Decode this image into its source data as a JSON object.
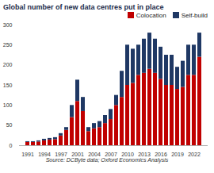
{
  "chart_data": {
    "type": "bar",
    "title": "Global number of new data centres put in place",
    "caption": "Source: DCByte data; Oxford Economics Analysis",
    "stacked": true,
    "legend": "top-right",
    "grid": false,
    "categories": [
      "1991",
      null,
      null,
      "1994",
      null,
      null,
      "1997",
      null,
      null,
      "2001",
      null,
      null,
      "2004",
      null,
      null,
      "2007",
      null,
      null,
      "2010",
      null,
      null,
      "2013",
      null,
      null,
      "2016",
      null,
      null,
      "2019",
      null,
      null,
      "2022",
      null
    ],
    "series": [
      {
        "name": "Colocation",
        "color": "#c00000",
        "values": [
          8,
          8,
          9,
          12,
          14,
          15,
          24,
          38,
          70,
          110,
          85,
          35,
          42,
          45,
          55,
          65,
          100,
          120,
          150,
          155,
          175,
          180,
          190,
          180,
          165,
          150,
          150,
          140,
          145,
          175,
          175,
          220
        ]
      },
      {
        "name": "Self-build",
        "color": "#1f3864",
        "values": [
          2,
          2,
          3,
          4,
          4,
          5,
          6,
          7,
          30,
          53,
          35,
          10,
          13,
          15,
          20,
          25,
          25,
          65,
          100,
          85,
          75,
          85,
          90,
          85,
          80,
          75,
          75,
          55,
          65,
          75,
          75,
          60
        ]
      }
    ],
    "ylim": [
      0,
      300
    ],
    "yticks": [
      0,
      50,
      100,
      150,
      200,
      250,
      300
    ]
  }
}
